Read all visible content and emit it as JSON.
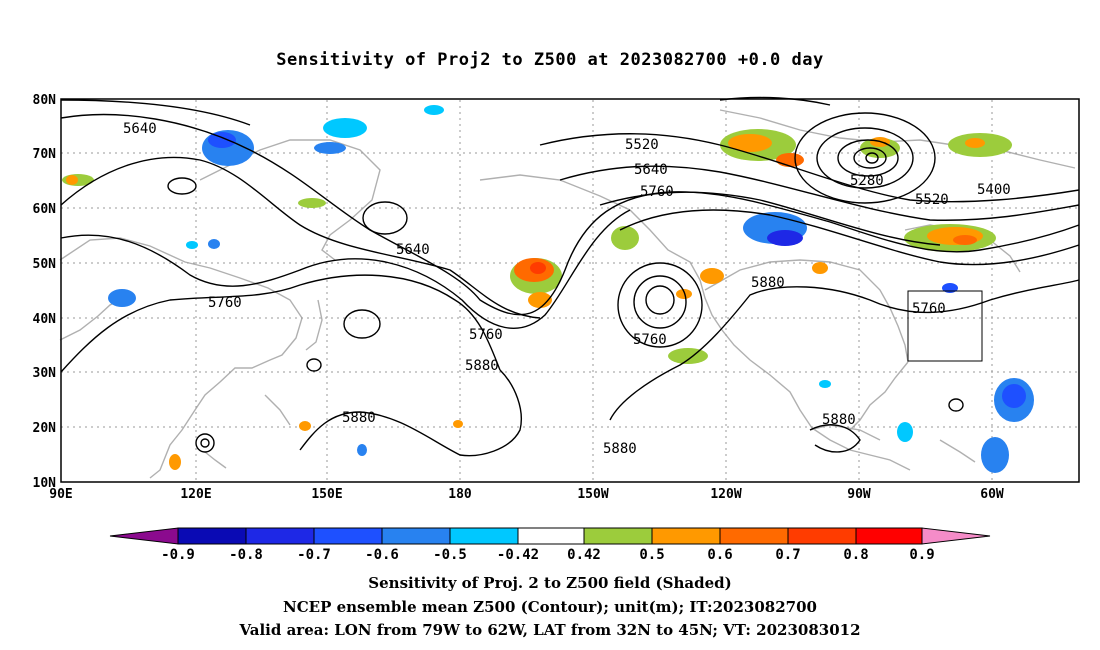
{
  "title": "Sensitivity of Proj2 to Z500 at 2023082700 +0.0 day",
  "lat_labels": [
    "80N",
    "70N",
    "60N",
    "50N",
    "40N",
    "30N",
    "20N",
    "10N"
  ],
  "lon_labels": [
    "90E",
    "120E",
    "150E",
    "180",
    "150W",
    "120W",
    "90W",
    "60W"
  ],
  "contour_labels": [
    "5640",
    "5640",
    "5760",
    "5760",
    "5880",
    "5880",
    "5520",
    "5640",
    "5760",
    "5760",
    "5880",
    "5880",
    "5880",
    "5280",
    "5520",
    "5400",
    "5760"
  ],
  "colorbar": {
    "ticks": [
      "-0.9",
      "-0.8",
      "-0.7",
      "-0.6",
      "-0.5",
      "-0.42",
      "0.42",
      "0.5",
      "0.6",
      "0.7",
      "0.8",
      "0.9"
    ],
    "colors": [
      "#8b0a8e",
      "#0a0ab4",
      "#1e28e6",
      "#1e50ff",
      "#2882f0",
      "#00c8ff",
      "#ffffff",
      "#9ccc3c",
      "#ff9900",
      "#ff6a00",
      "#ff3c00",
      "#ff0000",
      "#f58cc8"
    ]
  },
  "valid_area": {
    "lon_min": -79,
    "lon_max": -62,
    "lat_min": 32,
    "lat_max": 45
  },
  "captions": {
    "line1": "Sensitivity of Proj. 2 to Z500 field (Shaded)",
    "line2": "NCEP ensemble mean Z500 (Contour); unit(m); IT:2023082700",
    "line3": "Valid area: LON from 79W to 62W, LAT from 32N to 45N; VT: 2023083012"
  }
}
